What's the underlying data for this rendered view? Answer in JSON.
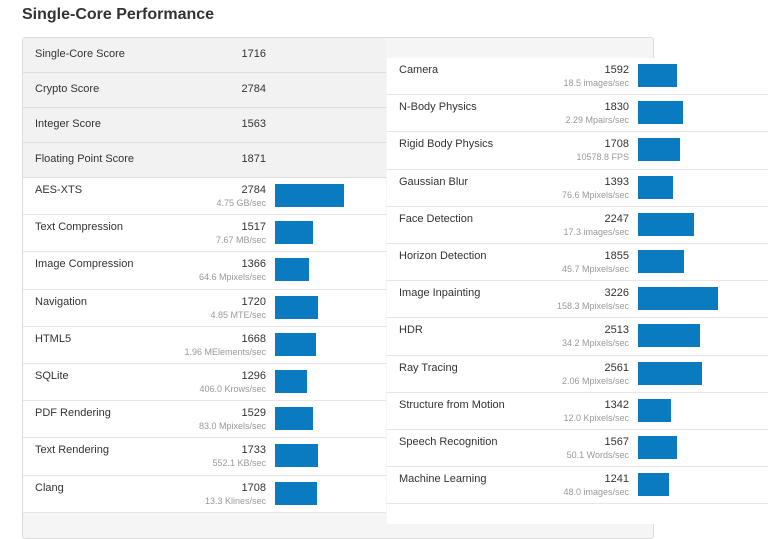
{
  "page": {
    "title": "Single-Core Performance"
  },
  "summary": [
    {
      "label": "Single-Core Score",
      "value": "1716"
    },
    {
      "label": "Crypto Score",
      "value": "2784"
    },
    {
      "label": "Integer Score",
      "value": "1563"
    },
    {
      "label": "Floating Point Score",
      "value": "1871"
    }
  ],
  "left": [
    {
      "label": "AES-XTS",
      "score": "2784",
      "unit": "4.75 GB/sec"
    },
    {
      "label": "Text Compression",
      "score": "1517",
      "unit": "7.67 MB/sec"
    },
    {
      "label": "Image Compression",
      "score": "1366",
      "unit": "64.6 Mpixels/sec"
    },
    {
      "label": "Navigation",
      "score": "1720",
      "unit": "4.85 MTE/sec"
    },
    {
      "label": "HTML5",
      "score": "1668",
      "unit": "1.96 MElements/sec"
    },
    {
      "label": "SQLite",
      "score": "1296",
      "unit": "406.0 Krows/sec"
    },
    {
      "label": "PDF Rendering",
      "score": "1529",
      "unit": "83.0 Mpixels/sec"
    },
    {
      "label": "Text Rendering",
      "score": "1733",
      "unit": "552.1 KB/sec"
    },
    {
      "label": "Clang",
      "score": "1708",
      "unit": "13.3 Klines/sec"
    }
  ],
  "right": [
    {
      "label": "Camera",
      "score": "1592",
      "unit": "18.5 images/sec"
    },
    {
      "label": "N-Body Physics",
      "score": "1830",
      "unit": "2.29 Mpairs/sec"
    },
    {
      "label": "Rigid Body Physics",
      "score": "1708",
      "unit": "10578.8 FPS"
    },
    {
      "label": "Gaussian Blur",
      "score": "1393",
      "unit": "76.6 Mpixels/sec"
    },
    {
      "label": "Face Detection",
      "score": "2247",
      "unit": "17.3 images/sec"
    },
    {
      "label": "Horizon Detection",
      "score": "1855",
      "unit": "45.7 Mpixels/sec"
    },
    {
      "label": "Image Inpainting",
      "score": "3226",
      "unit": "158.3 Mpixels/sec"
    },
    {
      "label": "HDR",
      "score": "2513",
      "unit": "34.2 Mpixels/sec"
    },
    {
      "label": "Ray Tracing",
      "score": "2561",
      "unit": "2.06 Mpixels/sec"
    },
    {
      "label": "Structure from Motion",
      "score": "1342",
      "unit": "12.0 Kpixels/sec"
    },
    {
      "label": "Speech Recognition",
      "score": "1567",
      "unit": "50.1 Words/sec"
    },
    {
      "label": "Machine Learning",
      "score": "1241",
      "unit": "48.0 images/sec"
    }
  ],
  "colors": {
    "bar": "#0a7bc0"
  }
}
